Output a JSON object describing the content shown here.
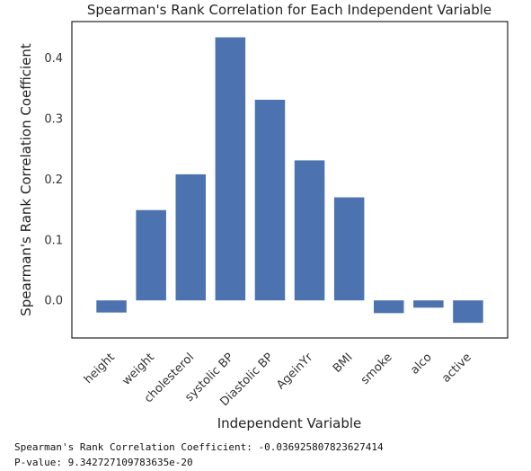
{
  "chart_data": {
    "type": "bar",
    "title": "Spearman's Rank Correlation for Each Independent Variable",
    "xlabel": "Independent Variable",
    "ylabel": "Spearman's Rank Correlation Coefficient",
    "categories": [
      "height",
      "weight",
      "cholesterol",
      "systolic BP",
      "Diastolic BP",
      "AgeinYr",
      "BMI",
      "smoke",
      "alco",
      "active"
    ],
    "values": [
      -0.02,
      0.149,
      0.208,
      0.434,
      0.331,
      0.231,
      0.17,
      -0.021,
      -0.012,
      -0.037
    ],
    "yticks": [
      0.0,
      0.1,
      0.2,
      0.3,
      0.4
    ],
    "ytick_labels": [
      "0.0",
      "0.1",
      "0.2",
      "0.3",
      "0.4"
    ],
    "ylim": [
      -0.062,
      0.46
    ],
    "bar_color": "#4c72b0",
    "grid": false
  },
  "output": {
    "coefficient_line": "Spearman's Rank Correlation Coefficient: -0.036925807823627414",
    "pvalue_line": "P-value: 9.342727109783635e-20"
  }
}
